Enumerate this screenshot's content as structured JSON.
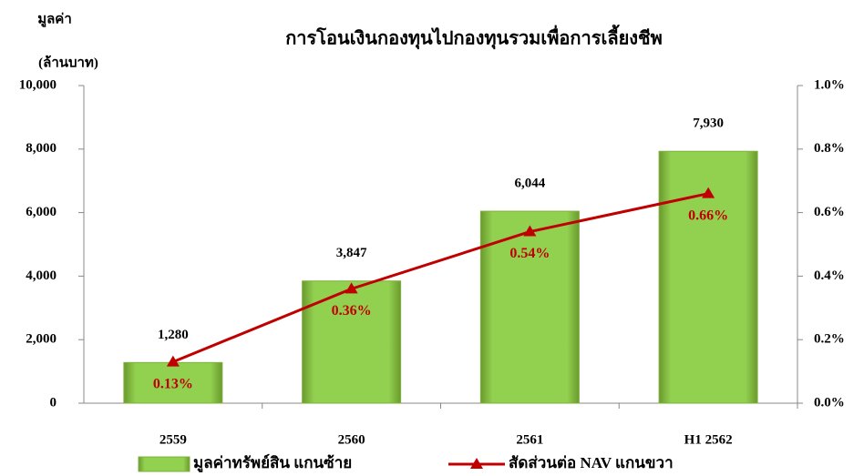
{
  "chart_data": {
    "type": "combo",
    "title": "การโอนเงินกองทุนไปกองทุนรวมเพื่อการเลี้ยงชีพ",
    "ylabel": [
      "มูลค่า",
      "(ล้านบาท)"
    ],
    "categories": [
      "2559",
      "2560",
      "2561",
      "H1 2562"
    ],
    "series": [
      {
        "name": "มูลค่าทรัพย์สิน แกนซ้าย",
        "type": "bar",
        "axis": "y",
        "color": "#92d050",
        "values": [
          1280,
          3847,
          6044,
          7930
        ],
        "value_labels": [
          "1,280",
          "3,847",
          "6,044",
          "7,930"
        ]
      },
      {
        "name": "สัดส่วนต่อ NAV แกนขวา",
        "type": "line",
        "axis": "y2",
        "color": "#c00000",
        "values": [
          0.13,
          0.36,
          0.54,
          0.66
        ],
        "value_labels": [
          "0.13%",
          "0.36%",
          "0.54%",
          "0.66%"
        ]
      }
    ],
    "ylim": [
      0,
      10000
    ],
    "yticks": [
      0,
      {
        "value": 2000,
        "label": "2,000"
      },
      {
        "value": 4000,
        "label": "4,000"
      },
      {
        "value": 6000,
        "label": "6,000"
      },
      {
        "value": 8000,
        "label": "8,000"
      },
      {
        "value": 10000,
        "label": "10,000"
      }
    ],
    "y2lim": [
      0,
      1
    ],
    "y2ticks": [
      {
        "value": 0,
        "label": "0.0%"
      },
      {
        "value": 0.2,
        "label": "0.2%"
      },
      {
        "value": 0.4,
        "label": "0.4%"
      },
      {
        "value": 0.6,
        "label": "0.6%"
      },
      {
        "value": 0.8,
        "label": "0.8%"
      },
      {
        "value": 1,
        "label": "1.0%"
      }
    ],
    "legend": "bottom"
  }
}
